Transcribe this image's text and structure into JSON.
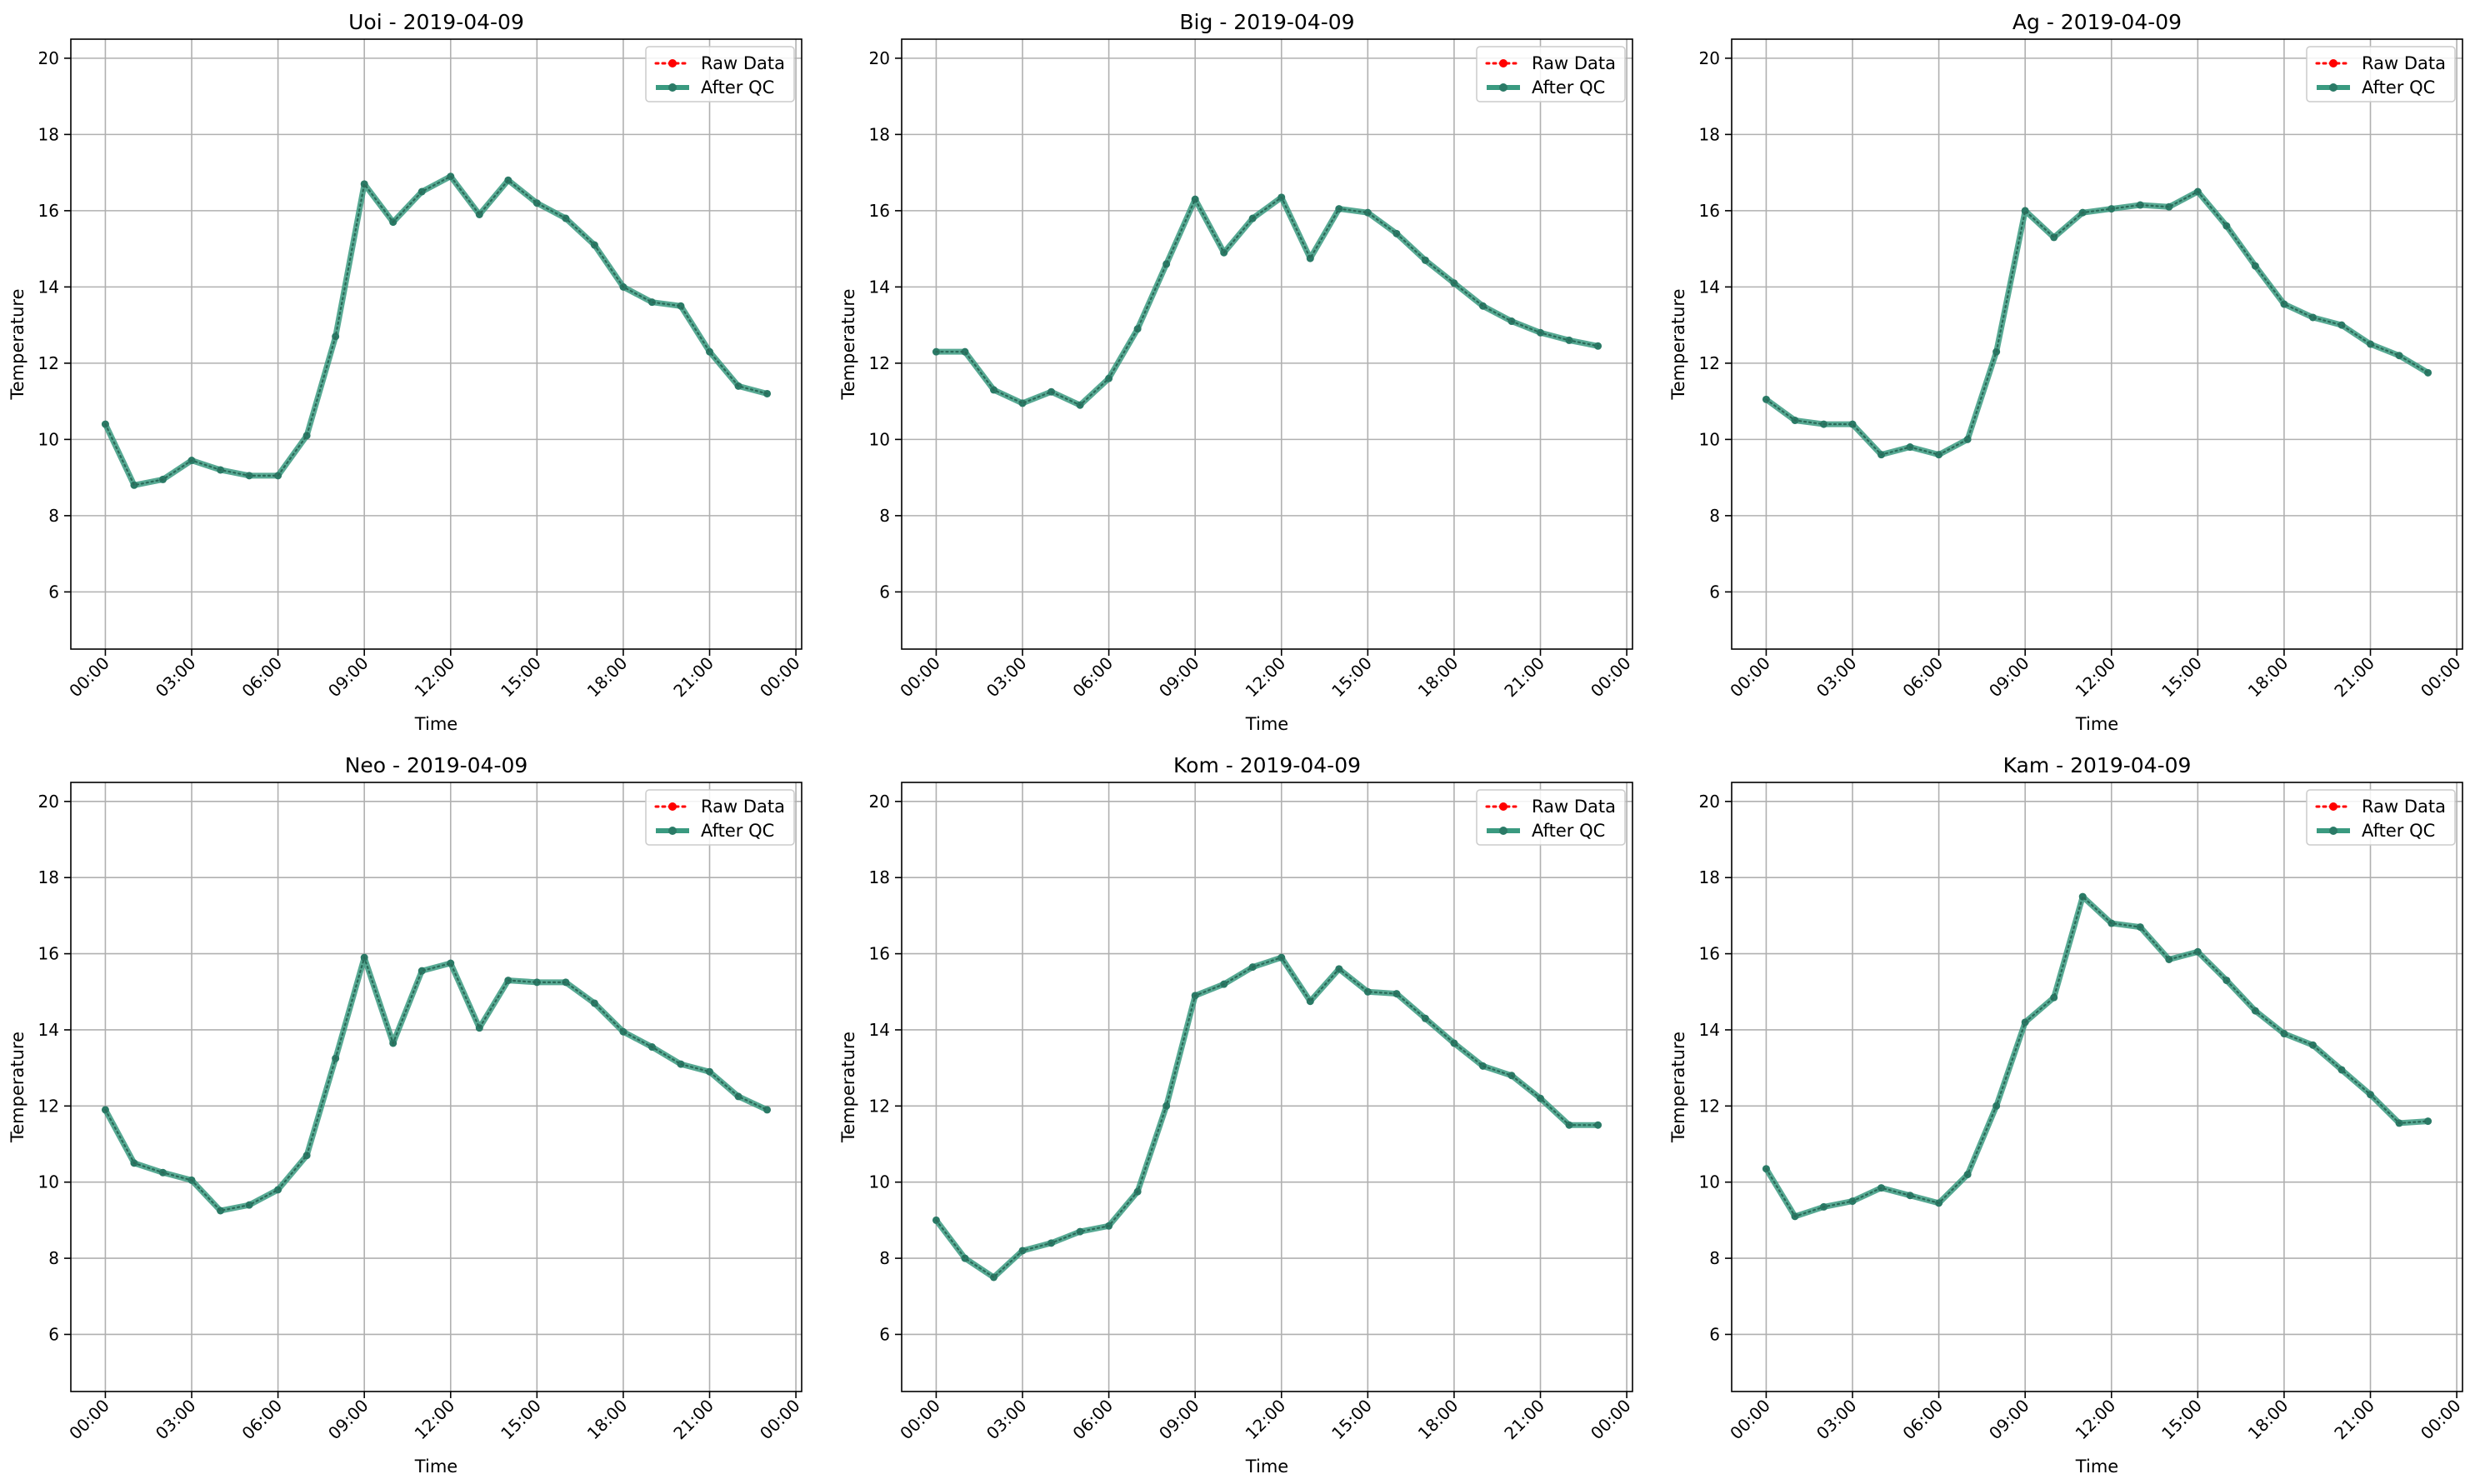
{
  "chart_data": [
    {
      "type": "line",
      "title": "Uoi - 2019-04-09",
      "xlabel": "Time",
      "ylabel": "Temperature",
      "ylim": [
        4.5,
        20.5
      ],
      "yticks": [
        6,
        8,
        10,
        12,
        14,
        16,
        18,
        20
      ],
      "xtick_labels": [
        "00:00",
        "03:00",
        "06:00",
        "09:00",
        "12:00",
        "15:00",
        "18:00",
        "21:00",
        "00:00"
      ],
      "grid": true,
      "legend_position": "top-right",
      "x_hours": [
        0,
        1,
        2,
        3,
        4,
        5,
        6,
        7,
        8,
        9,
        10,
        11,
        12,
        13,
        14,
        15,
        16,
        17,
        18,
        19,
        20,
        21,
        22,
        23
      ],
      "series": [
        {
          "name": "Raw Data",
          "color": "#ff0000",
          "values": [
            10.4,
            8.8,
            8.95,
            9.45,
            9.2,
            9.05,
            9.05,
            10.1,
            12.7,
            16.7,
            15.7,
            16.5,
            16.9,
            15.9,
            16.8,
            16.2,
            15.8,
            15.1,
            14.0,
            13.6,
            13.5,
            12.3,
            11.4,
            11.2
          ]
        },
        {
          "name": "After QC",
          "color": "#3a9a80",
          "values": [
            10.4,
            8.8,
            8.95,
            9.45,
            9.2,
            9.05,
            9.05,
            10.1,
            12.7,
            16.7,
            15.7,
            16.5,
            16.9,
            15.9,
            16.8,
            16.2,
            15.8,
            15.1,
            14.0,
            13.6,
            13.5,
            12.3,
            11.4,
            11.2
          ]
        }
      ]
    },
    {
      "type": "line",
      "title": "Big - 2019-04-09",
      "xlabel": "Time",
      "ylabel": "Temperature",
      "ylim": [
        4.5,
        20.5
      ],
      "yticks": [
        6,
        8,
        10,
        12,
        14,
        16,
        18,
        20
      ],
      "xtick_labels": [
        "00:00",
        "03:00",
        "06:00",
        "09:00",
        "12:00",
        "15:00",
        "18:00",
        "21:00",
        "00:00"
      ],
      "grid": true,
      "legend_position": "top-right",
      "x_hours": [
        0,
        1,
        2,
        3,
        4,
        5,
        6,
        7,
        8,
        9,
        10,
        11,
        12,
        13,
        14,
        15,
        16,
        17,
        18,
        19,
        20,
        21,
        22,
        23
      ],
      "series": [
        {
          "name": "Raw Data",
          "color": "#ff0000",
          "values": [
            12.3,
            12.3,
            11.3,
            10.95,
            11.25,
            10.9,
            11.6,
            12.9,
            14.6,
            16.3,
            14.9,
            15.8,
            16.35,
            14.75,
            16.05,
            15.95,
            15.4,
            14.7,
            14.1,
            13.5,
            13.1,
            12.8,
            12.6,
            12.45
          ]
        },
        {
          "name": "After QC",
          "color": "#3a9a80",
          "values": [
            12.3,
            12.3,
            11.3,
            10.95,
            11.25,
            10.9,
            11.6,
            12.9,
            14.6,
            16.3,
            14.9,
            15.8,
            16.35,
            14.75,
            16.05,
            15.95,
            15.4,
            14.7,
            14.1,
            13.5,
            13.1,
            12.8,
            12.6,
            12.45
          ]
        }
      ]
    },
    {
      "type": "line",
      "title": "Ag - 2019-04-09",
      "xlabel": "Time",
      "ylabel": "Temperature",
      "ylim": [
        4.5,
        20.5
      ],
      "yticks": [
        6,
        8,
        10,
        12,
        14,
        16,
        18,
        20
      ],
      "xtick_labels": [
        "00:00",
        "03:00",
        "06:00",
        "09:00",
        "12:00",
        "15:00",
        "18:00",
        "21:00",
        "00:00"
      ],
      "grid": true,
      "legend_position": "top-right",
      "x_hours": [
        0,
        1,
        2,
        3,
        4,
        5,
        6,
        7,
        8,
        9,
        10,
        11,
        12,
        13,
        14,
        15,
        16,
        17,
        18,
        19,
        20,
        21,
        22,
        23
      ],
      "series": [
        {
          "name": "Raw Data",
          "color": "#ff0000",
          "values": [
            11.05,
            10.5,
            10.4,
            10.4,
            9.6,
            9.8,
            9.6,
            10.0,
            12.3,
            16.0,
            15.3,
            15.95,
            16.05,
            16.15,
            16.1,
            16.5,
            15.6,
            14.55,
            13.55,
            13.2,
            13.0,
            12.5,
            12.2,
            11.75
          ]
        },
        {
          "name": "After QC",
          "color": "#3a9a80",
          "values": [
            11.05,
            10.5,
            10.4,
            10.4,
            9.6,
            9.8,
            9.6,
            10.0,
            12.3,
            16.0,
            15.3,
            15.95,
            16.05,
            16.15,
            16.1,
            16.5,
            15.6,
            14.55,
            13.55,
            13.2,
            13.0,
            12.5,
            12.2,
            11.75
          ]
        }
      ]
    },
    {
      "type": "line",
      "title": "Neo - 2019-04-09",
      "xlabel": "Time",
      "ylabel": "Temperature",
      "ylim": [
        4.5,
        20.5
      ],
      "yticks": [
        6,
        8,
        10,
        12,
        14,
        16,
        18,
        20
      ],
      "xtick_labels": [
        "00:00",
        "03:00",
        "06:00",
        "09:00",
        "12:00",
        "15:00",
        "18:00",
        "21:00",
        "00:00"
      ],
      "grid": true,
      "legend_position": "top-right",
      "x_hours": [
        0,
        1,
        2,
        3,
        4,
        5,
        6,
        7,
        8,
        9,
        10,
        11,
        12,
        13,
        14,
        15,
        16,
        17,
        18,
        19,
        20,
        21,
        22,
        23
      ],
      "series": [
        {
          "name": "Raw Data",
          "color": "#ff0000",
          "values": [
            11.9,
            10.5,
            10.25,
            10.05,
            9.25,
            9.4,
            9.8,
            10.7,
            13.25,
            15.9,
            13.65,
            15.55,
            15.75,
            14.05,
            15.3,
            15.25,
            15.25,
            14.7,
            13.95,
            13.55,
            13.1,
            12.9,
            12.25,
            11.9
          ]
        },
        {
          "name": "After QC",
          "color": "#3a9a80",
          "values": [
            11.9,
            10.5,
            10.25,
            10.05,
            9.25,
            9.4,
            9.8,
            10.7,
            13.25,
            15.9,
            13.65,
            15.55,
            15.75,
            14.05,
            15.3,
            15.25,
            15.25,
            14.7,
            13.95,
            13.55,
            13.1,
            12.9,
            12.25,
            11.9
          ]
        }
      ]
    },
    {
      "type": "line",
      "title": "Kom - 2019-04-09",
      "xlabel": "Time",
      "ylabel": "Temperature",
      "ylim": [
        4.5,
        20.5
      ],
      "yticks": [
        6,
        8,
        10,
        12,
        14,
        16,
        18,
        20
      ],
      "xtick_labels": [
        "00:00",
        "03:00",
        "06:00",
        "09:00",
        "12:00",
        "15:00",
        "18:00",
        "21:00",
        "00:00"
      ],
      "grid": true,
      "legend_position": "top-right",
      "x_hours": [
        0,
        1,
        2,
        3,
        4,
        5,
        6,
        7,
        8,
        9,
        10,
        11,
        12,
        13,
        14,
        15,
        16,
        17,
        18,
        19,
        20,
        21,
        22,
        23
      ],
      "series": [
        {
          "name": "Raw Data",
          "color": "#ff0000",
          "values": [
            9.0,
            8.0,
            7.5,
            8.2,
            8.4,
            8.7,
            8.85,
            9.75,
            12.0,
            14.9,
            15.2,
            15.65,
            15.9,
            14.75,
            15.6,
            15.0,
            14.95,
            14.3,
            13.65,
            13.05,
            12.8,
            12.2,
            11.5,
            11.5
          ]
        },
        {
          "name": "After QC",
          "color": "#3a9a80",
          "values": [
            9.0,
            8.0,
            7.5,
            8.2,
            8.4,
            8.7,
            8.85,
            9.75,
            12.0,
            14.9,
            15.2,
            15.65,
            15.9,
            14.75,
            15.6,
            15.0,
            14.95,
            14.3,
            13.65,
            13.05,
            12.8,
            12.2,
            11.5,
            11.5
          ]
        }
      ]
    },
    {
      "type": "line",
      "title": "Kam - 2019-04-09",
      "xlabel": "Time",
      "ylabel": "Temperature",
      "ylim": [
        4.5,
        20.5
      ],
      "yticks": [
        6,
        8,
        10,
        12,
        14,
        16,
        18,
        20
      ],
      "xtick_labels": [
        "00:00",
        "03:00",
        "06:00",
        "09:00",
        "12:00",
        "15:00",
        "18:00",
        "21:00",
        "00:00"
      ],
      "grid": true,
      "legend_position": "top-right",
      "x_hours": [
        0,
        1,
        2,
        3,
        4,
        5,
        6,
        7,
        8,
        9,
        10,
        11,
        12,
        13,
        14,
        15,
        16,
        17,
        18,
        19,
        20,
        21,
        22,
        23
      ],
      "series": [
        {
          "name": "Raw Data",
          "color": "#ff0000",
          "values": [
            10.35,
            9.1,
            9.35,
            9.5,
            9.85,
            9.65,
            9.45,
            10.2,
            12.0,
            14.2,
            14.85,
            17.5,
            16.8,
            16.7,
            15.85,
            16.05,
            15.3,
            14.5,
            13.9,
            13.6,
            12.95,
            12.3,
            11.55,
            11.6
          ]
        },
        {
          "name": "After QC",
          "color": "#3a9a80",
          "values": [
            10.35,
            9.1,
            9.35,
            9.5,
            9.85,
            9.65,
            9.45,
            10.2,
            12.0,
            14.2,
            14.85,
            17.5,
            16.8,
            16.7,
            15.85,
            16.05,
            15.3,
            14.5,
            13.9,
            13.6,
            12.95,
            12.3,
            11.55,
            11.6
          ]
        }
      ]
    }
  ]
}
